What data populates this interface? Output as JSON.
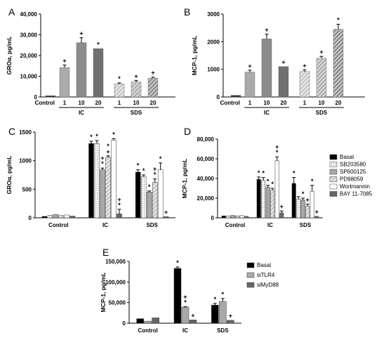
{
  "chart_data": [
    {
      "panel": "A",
      "type": "bar",
      "ylabel": "GROα, pg/mL",
      "yticks": [
        "0",
        "10,000",
        "20,000",
        "30,000",
        "40,000"
      ],
      "ylim": [
        0,
        40000
      ],
      "ytick_values": [
        0,
        10000,
        20000,
        30000,
        40000
      ],
      "group_labels": [
        "IC",
        "SDS"
      ],
      "categories": [
        "Control",
        "1",
        "10",
        "20",
        "1",
        "10",
        "20"
      ],
      "values": [
        600,
        14200,
        26200,
        23300,
        6300,
        7200,
        9100
      ],
      "errors": [
        0,
        1200,
        2400,
        0,
        500,
        800,
        500
      ],
      "markers": [
        "",
        "+",
        "+",
        "*",
        "*",
        "+",
        "+"
      ],
      "fills": [
        "solid:#333333",
        "solid:#aaaaaa",
        "solid:#8c8c8c",
        "solid:#707070",
        "hatch:#bbbbbb",
        "hatch:#999999",
        "hatch:#777777"
      ]
    },
    {
      "panel": "B",
      "type": "bar",
      "ylabel": "MCP-1, pg/mL",
      "yticks": [
        "0",
        "1000",
        "2000",
        "3000"
      ],
      "ylim": [
        0,
        3000
      ],
      "ytick_values": [
        0,
        1000,
        2000,
        3000
      ],
      "group_labels": [
        "IC",
        "SDS"
      ],
      "categories": [
        "Control",
        "1",
        "10",
        "20",
        "1",
        "10",
        "20"
      ],
      "values": [
        60,
        900,
        2100,
        1100,
        920,
        1400,
        2450
      ],
      "errors": [
        0,
        70,
        170,
        0,
        60,
        70,
        180
      ],
      "markers": [
        "",
        "+",
        "+",
        "+",
        "+",
        "+",
        "*"
      ],
      "fills": [
        "solid:#333333",
        "solid:#aaaaaa",
        "solid:#8c8c8c",
        "solid:#707070",
        "hatch:#bbbbbb",
        "hatch:#999999",
        "hatch:#777777"
      ]
    },
    {
      "panel": "C",
      "type": "bar",
      "ylabel": "GROα, pg/mL",
      "yticks": [
        "0",
        "500",
        "1000",
        "1500"
      ],
      "ylim": [
        0,
        1500
      ],
      "ytick_values": [
        0,
        500,
        1000,
        1500
      ],
      "categories": [
        "Control",
        "IC",
        "SDS"
      ],
      "series": [
        {
          "values": [
            25,
            1300,
            800
          ],
          "errors": [
            5,
            40,
            40
          ],
          "markers": [
            "",
            "*",
            "*"
          ]
        },
        {
          "values": [
            40,
            1300,
            720
          ],
          "errors": [
            5,
            50,
            30
          ],
          "markers": [
            "",
            "*",
            "*"
          ]
        },
        {
          "values": [
            60,
            840,
            450
          ],
          "errors": [
            5,
            30,
            20
          ],
          "markers": [
            "",
            "+\n*",
            "*"
          ]
        },
        {
          "values": [
            40,
            1060,
            620
          ],
          "errors": [
            5,
            25,
            60
          ],
          "markers": [
            "",
            "*\n+",
            "+\n*"
          ]
        },
        {
          "values": [
            50,
            1360,
            840
          ],
          "errors": [
            5,
            25,
            120
          ],
          "markers": [
            "",
            "*",
            "*"
          ]
        },
        {
          "values": [
            30,
            70,
            20
          ],
          "errors": [
            5,
            80,
            5
          ],
          "markers": [
            "",
            "+\n*",
            "+"
          ]
        }
      ]
    },
    {
      "panel": "D",
      "type": "bar",
      "ylabel": "MCP-1, pg/mL",
      "yticks": [
        "0",
        "20,000",
        "40,000",
        "60,000",
        "80,000"
      ],
      "ylim": [
        0,
        80000
      ],
      "ytick_values": [
        0,
        20000,
        40000,
        60000,
        80000
      ],
      "categories": [
        "Control",
        "IC",
        "SDS"
      ],
      "legend": [
        "Basal",
        "SB203580",
        "SP600125",
        "PD98059",
        "Wortmannin",
        "BAY 11-7085"
      ],
      "series": [
        {
          "values": [
            2000,
            39000,
            35000
          ],
          "errors": [
            200,
            2500,
            6000
          ],
          "markers": [
            "",
            "*",
            "*"
          ]
        },
        {
          "values": [
            2000,
            38000,
            19000
          ],
          "errors": [
            200,
            3000,
            2500
          ],
          "markers": [
            "",
            "*",
            ""
          ]
        },
        {
          "values": [
            2500,
            31000,
            18000
          ],
          "errors": [
            300,
            2000,
            2000
          ],
          "markers": [
            "",
            "*",
            "*"
          ]
        },
        {
          "values": [
            2000,
            28000,
            12000
          ],
          "errors": [
            200,
            2000,
            2000
          ],
          "markers": [
            "",
            "*",
            "+"
          ]
        },
        {
          "values": [
            2500,
            58000,
            27000
          ],
          "errors": [
            300,
            4000,
            6000
          ],
          "markers": [
            "",
            "+\n*",
            "*"
          ]
        },
        {
          "values": [
            1500,
            5000,
            1500
          ],
          "errors": [
            200,
            2000,
            300
          ],
          "markers": [
            "",
            "+",
            "+"
          ]
        }
      ]
    },
    {
      "panel": "E",
      "type": "bar",
      "ylabel": "MCP-1, pg/mL",
      "yticks": [
        "0",
        "50,000",
        "100,000",
        "150,000"
      ],
      "ylim": [
        0,
        150000
      ],
      "ytick_values": [
        0,
        50000,
        100000,
        150000
      ],
      "categories": [
        "Control",
        "IC",
        "SDS"
      ],
      "legend": [
        "Basal",
        "siTLR4",
        "siMyD88"
      ],
      "series": [
        {
          "values": [
            11000,
            133000,
            44000
          ],
          "errors": [
            500,
            3500,
            4000
          ],
          "markers": [
            "",
            "*",
            "*"
          ]
        },
        {
          "values": [
            5000,
            39000,
            53000
          ],
          "errors": [
            500,
            1000,
            7000
          ],
          "markers": [
            "",
            "+\n*",
            "*"
          ]
        },
        {
          "values": [
            13000,
            8000,
            7000
          ],
          "errors": [
            700,
            800,
            500
          ],
          "markers": [
            "",
            "+",
            "+"
          ]
        }
      ]
    }
  ],
  "colors": {
    "basal": "#000000",
    "sb203580": "#d0d0d0",
    "sp600125": "#a0a0a0",
    "pd98059": "#b8b8b8",
    "wortmannin": "#ffffff",
    "bay": "#6e6e6e",
    "sitlr4": "#a8a8a8",
    "simyd88": "#707070"
  }
}
